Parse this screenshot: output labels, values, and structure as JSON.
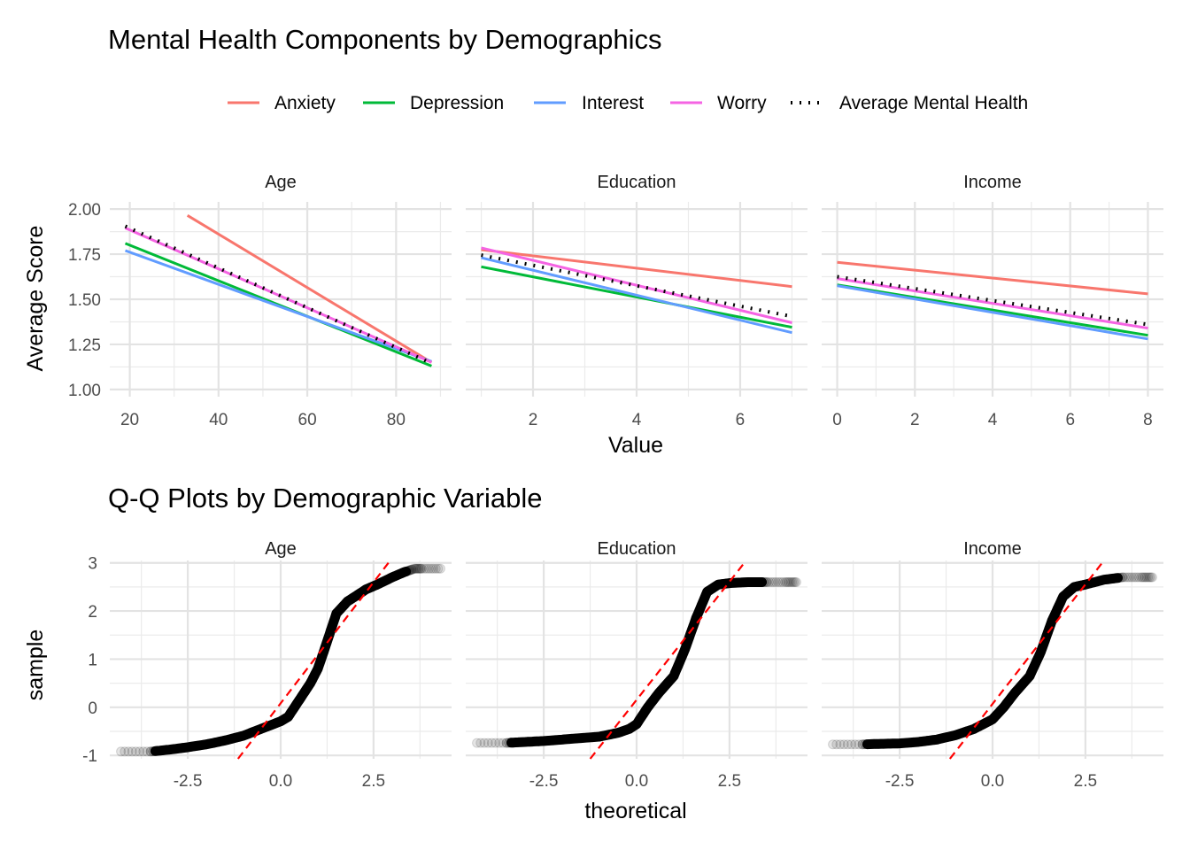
{
  "chart_data": [
    {
      "type": "line",
      "title": "Mental Health Components by Demographics",
      "xlabel": "Value",
      "ylabel": "Average Score",
      "legend_position": "top",
      "grid": true,
      "legend": [
        {
          "name": "Anxiety",
          "color": "#F8766D",
          "style": "solid"
        },
        {
          "name": "Depression",
          "color": "#00BA38",
          "style": "solid"
        },
        {
          "name": "Interest",
          "color": "#619CFF",
          "style": "solid"
        },
        {
          "name": "Worry",
          "color": "#F564E3",
          "style": "solid"
        },
        {
          "name": "Average Mental Health",
          "color": "#000000",
          "style": "dotted"
        }
      ],
      "ylim": [
        0.96,
        2.04
      ],
      "y_ticks": [
        1.0,
        1.25,
        1.5,
        1.75,
        2.0
      ],
      "y_tick_labels": [
        "1.00",
        "1.25",
        "1.50",
        "1.75",
        "2.00"
      ],
      "panels": [
        {
          "name": "Age",
          "xlim": [
            15.5,
            92.5
          ],
          "x_ticks": [
            20,
            40,
            60,
            80
          ],
          "x_tick_labels": [
            "20",
            "40",
            "60",
            "80"
          ],
          "series": [
            {
              "name": "Anxiety",
              "x": [
                33,
                88
              ],
              "y": [
                1.965,
                1.15
              ]
            },
            {
              "name": "Depression",
              "x": [
                19,
                88
              ],
              "y": [
                1.81,
                1.13
              ]
            },
            {
              "name": "Interest",
              "x": [
                19,
                88
              ],
              "y": [
                1.77,
                1.155
              ]
            },
            {
              "name": "Worry",
              "x": [
                19,
                88
              ],
              "y": [
                1.895,
                1.15
              ]
            },
            {
              "name": "Average Mental Health",
              "x": [
                19,
                88
              ],
              "y": [
                1.905,
                1.145
              ]
            }
          ]
        },
        {
          "name": "Education",
          "xlim": [
            0.7,
            7.3
          ],
          "x_ticks": [
            2,
            4,
            6
          ],
          "x_tick_labels": [
            "2",
            "4",
            "6"
          ],
          "series": [
            {
              "name": "Anxiety",
              "x": [
                1,
                7
              ],
              "y": [
                1.775,
                1.57
              ]
            },
            {
              "name": "Depression",
              "x": [
                1,
                7
              ],
              "y": [
                1.68,
                1.345
              ]
            },
            {
              "name": "Interest",
              "x": [
                1,
                7
              ],
              "y": [
                1.73,
                1.315
              ]
            },
            {
              "name": "Worry",
              "x": [
                1,
                7
              ],
              "y": [
                1.785,
                1.37
              ]
            },
            {
              "name": "Average Mental Health",
              "x": [
                1,
                7
              ],
              "y": [
                1.745,
                1.405
              ]
            }
          ]
        },
        {
          "name": "Income",
          "xlim": [
            -0.4,
            8.4
          ],
          "x_ticks": [
            0,
            2,
            4,
            6,
            8
          ],
          "x_tick_labels": [
            "0",
            "2",
            "4",
            "6",
            "8"
          ],
          "series": [
            {
              "name": "Anxiety",
              "x": [
                0,
                8
              ],
              "y": [
                1.705,
                1.53
              ]
            },
            {
              "name": "Depression",
              "x": [
                0,
                8
              ],
              "y": [
                1.58,
                1.3
              ]
            },
            {
              "name": "Interest",
              "x": [
                0,
                8
              ],
              "y": [
                1.575,
                1.28
              ]
            },
            {
              "name": "Worry",
              "x": [
                0,
                8
              ],
              "y": [
                1.615,
                1.34
              ]
            },
            {
              "name": "Average Mental Health",
              "x": [
                0,
                8
              ],
              "y": [
                1.625,
                1.36
              ]
            }
          ]
        }
      ]
    },
    {
      "type": "scatter",
      "title": "Q-Q Plots by Demographic Variable",
      "xlabel": "theoretical",
      "ylabel": "sample",
      "grid": true,
      "xlim": [
        -4.6,
        4.6
      ],
      "ylim": [
        -1.07,
        3.05
      ],
      "x_ticks": [
        -2.5,
        0.0,
        2.5
      ],
      "x_tick_labels": [
        "-2.5",
        "0.0",
        "2.5"
      ],
      "y_ticks": [
        -1,
        0,
        1,
        2,
        3
      ],
      "y_tick_labels": [
        "-1",
        "0",
        "1",
        "2",
        "3"
      ],
      "reference_line_color": "#FF0000",
      "point_color": "#000000",
      "panels": [
        {
          "name": "Age",
          "curve": {
            "x": [
              -4.3,
              -3.5,
              -3.0,
              -2.5,
              -2.0,
              -1.5,
              -1.0,
              -0.5,
              0.0,
              0.2,
              0.5,
              0.8,
              1.0,
              1.2,
              1.5,
              1.8,
              2.0,
              2.3,
              2.6,
              3.0,
              3.3,
              3.6,
              3.8,
              4.3
            ],
            "y": [
              -0.92,
              -0.92,
              -0.88,
              -0.83,
              -0.77,
              -0.69,
              -0.59,
              -0.44,
              -0.29,
              -0.2,
              0.15,
              0.5,
              0.8,
              1.25,
              1.95,
              2.2,
              2.3,
              2.45,
              2.55,
              2.7,
              2.8,
              2.88,
              2.88,
              2.88
            ]
          },
          "reference_line": {
            "x": [
              -1.15,
              2.95
            ],
            "y": [
              -1.07,
              3.05
            ]
          }
        },
        {
          "name": "Education",
          "curve": {
            "x": [
              -4.3,
              -3.5,
              -3.0,
              -2.5,
              -2.0,
              -1.5,
              -1.0,
              -0.5,
              -0.2,
              0.0,
              0.3,
              0.6,
              1.0,
              1.3,
              1.6,
              1.9,
              2.2,
              2.5,
              3.0,
              3.5,
              4.0,
              4.3
            ],
            "y": [
              -0.74,
              -0.74,
              -0.72,
              -0.7,
              -0.67,
              -0.64,
              -0.61,
              -0.53,
              -0.45,
              -0.35,
              0.0,
              0.3,
              0.65,
              1.2,
              1.85,
              2.4,
              2.55,
              2.58,
              2.6,
              2.6,
              2.6,
              2.6
            ]
          },
          "reference_line": {
            "x": [
              -1.25,
              2.95
            ],
            "y": [
              -1.07,
              3.05
            ]
          }
        },
        {
          "name": "Income",
          "curve": {
            "x": [
              -4.3,
              -3.5,
              -3.0,
              -2.5,
              -2.0,
              -1.5,
              -1.0,
              -0.5,
              0.0,
              0.3,
              0.6,
              1.0,
              1.3,
              1.6,
              1.9,
              2.2,
              2.5,
              3.0,
              3.5,
              4.0,
              4.3
            ],
            "y": [
              -0.77,
              -0.77,
              -0.76,
              -0.75,
              -0.72,
              -0.67,
              -0.58,
              -0.45,
              -0.25,
              0.0,
              0.3,
              0.65,
              1.15,
              1.8,
              2.3,
              2.5,
              2.55,
              2.65,
              2.7,
              2.7,
              2.7
            ]
          },
          "reference_line": {
            "x": [
              -1.15,
              3.0
            ],
            "y": [
              -1.07,
              3.05
            ]
          }
        }
      ]
    }
  ]
}
